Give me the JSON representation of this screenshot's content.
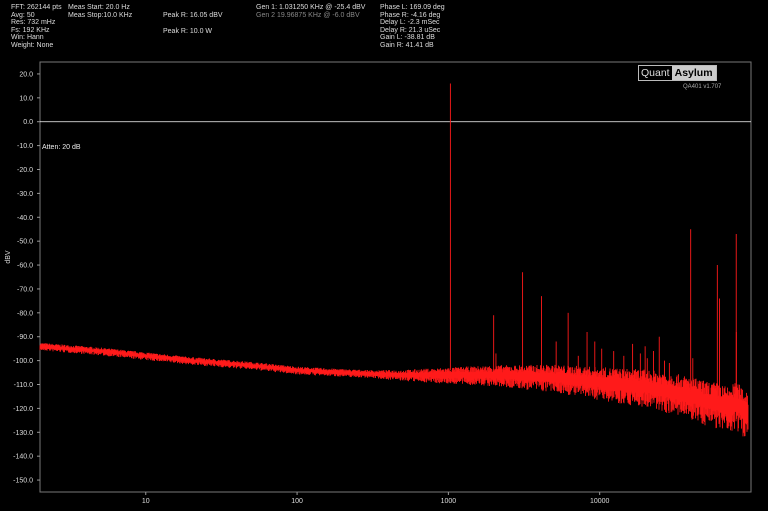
{
  "header": {
    "col1": [
      "FFT: 262144 pts",
      "Avg: 50",
      "Res: 732 mHz",
      "Fs: 192 KHz",
      "Win: Hann",
      "Weight: None"
    ],
    "col2": [
      "Meas Start: 20.0 Hz",
      "Meas Stop:10.0 KHz"
    ],
    "col3": [
      "Peak R: 16.05 dBV",
      "Peak R: 10.0 W"
    ],
    "gen1": "Gen 1: 1.031250 KHz @ -25.4  dBV",
    "gen2": "Gen 2 19.96875 KHz @ -6.0  dBV",
    "col5": [
      "Phase L: 169.09 deg",
      "Phase R: -4.16 deg",
      "Delay L: -2.3 mSec",
      "Delay R: 21.3 uSec",
      "Gain L: -38.81 dB",
      "Gain R: 41.41 dB"
    ]
  },
  "logo": {
    "part1": "Quant",
    "part2": "Asylum"
  },
  "version": "QA401 v1.707",
  "annotation": "Atten: 20 dB",
  "colors": {
    "background": "#000000",
    "trace": "#ff1a1a",
    "axis_text": "#dddddd",
    "zero_line": "#ffffff"
  },
  "chart_data": {
    "type": "line",
    "title": "",
    "xlabel": "",
    "ylabel": "dBV",
    "x_scale": "log",
    "xlim": [
      2,
      100000
    ],
    "ylim": [
      -155,
      25
    ],
    "yticks": [
      20,
      10,
      0,
      -10,
      -20,
      -30,
      -40,
      -50,
      -60,
      -70,
      -80,
      -90,
      -100,
      -110,
      -120,
      -130,
      -140,
      -150
    ],
    "ytick_labels": [
      "20.0",
      "10.0",
      "0.0",
      "-10.0",
      "-20.0",
      "-30.0",
      "-40.0",
      "-50.0",
      "-60.0",
      "-70.0",
      "-80.0",
      "-90.0",
      "-100.0",
      "-110.0",
      "-120.0",
      "-130.0",
      "-140.0",
      "-150.0"
    ],
    "xticks": [
      10,
      100,
      1000,
      10000
    ],
    "xtick_labels": [
      "10",
      "100",
      "1000",
      "10000"
    ],
    "grid": false,
    "reference_line_y": 0,
    "series": [
      {
        "noise_floor": {
          "x": [
            2,
            5,
            10,
            20,
            50,
            100,
            200,
            500,
            1000,
            2000,
            5000,
            10000,
            20000,
            30000,
            40000,
            50000,
            60000,
            70000,
            80000,
            90000,
            96000
          ],
          "y": [
            -94,
            -96,
            -98,
            -100,
            -102,
            -104,
            -105,
            -106,
            -106,
            -106,
            -107,
            -109,
            -111,
            -113,
            -115,
            -117,
            -118,
            -120,
            -118,
            -121,
            -122
          ]
        },
        "spurs": {
          "x": [
            1031,
            1992,
            2062,
            3093,
            4125,
            5156,
            6187,
            7218,
            8250,
            9281,
            10312,
            12375,
            14437,
            16500,
            18562,
            19968,
            20625,
            22687,
            24750,
            26812,
            28875,
            39937,
            41250,
            59906,
            61875,
            79875,
            80000
          ],
          "y": [
            16,
            -81,
            -97,
            -63,
            -73,
            -92,
            -80,
            -98,
            -88,
            -92,
            -95,
            -96,
            -98,
            -93,
            -97,
            -94,
            -99,
            -96,
            -90,
            -100,
            -101,
            -45,
            -99,
            -60,
            -74,
            -47,
            -88
          ]
        }
      }
    ]
  }
}
